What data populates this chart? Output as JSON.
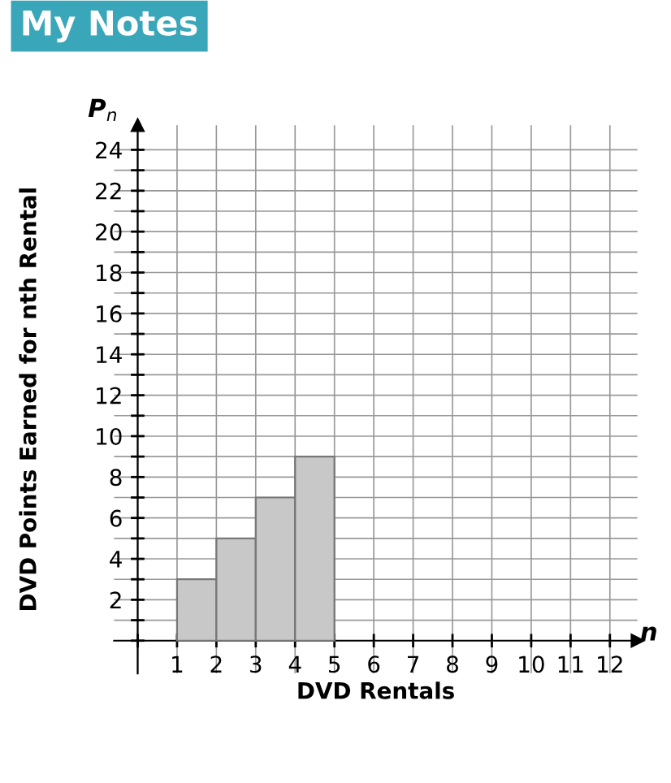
{
  "chart_data": {
    "type": "histogram",
    "xlabel": "DVD Rentals",
    "ylabel": "DVD Points Earned for nth Rental",
    "bins": [
      1,
      2,
      3,
      4,
      5
    ],
    "values": [
      3,
      5,
      7,
      9
    ],
    "color": "#c8c8c8",
    "xlim": [
      -0.6,
      12.7
    ],
    "ylim": [
      -1.6,
      25.2
    ],
    "xticks": [
      {
        "value": 0,
        "label": null
      },
      1,
      2,
      3,
      4,
      5,
      6,
      7,
      8,
      9,
      10,
      11,
      12
    ],
    "yticks": [
      {
        "value": 0,
        "label": null
      },
      {
        "value": 1,
        "label": null
      },
      2,
      {
        "value": 3,
        "label": null
      },
      4,
      {
        "value": 5,
        "label": null
      },
      6,
      {
        "value": 7,
        "label": null
      },
      8,
      {
        "value": 9,
        "label": null
      },
      10,
      {
        "value": 11,
        "label": null
      },
      12,
      {
        "value": 13,
        "label": null
      },
      14,
      {
        "value": 15,
        "label": null
      },
      16,
      {
        "value": 17,
        "label": null
      },
      18,
      {
        "value": 19,
        "label": null
      },
      20,
      {
        "value": 21,
        "label": null
      },
      22,
      {
        "value": 23,
        "label": null
      },
      24
    ],
    "grid": true,
    "annotations": [
      "My Notes",
      "P$_{n}$",
      "n"
    ]
  }
}
